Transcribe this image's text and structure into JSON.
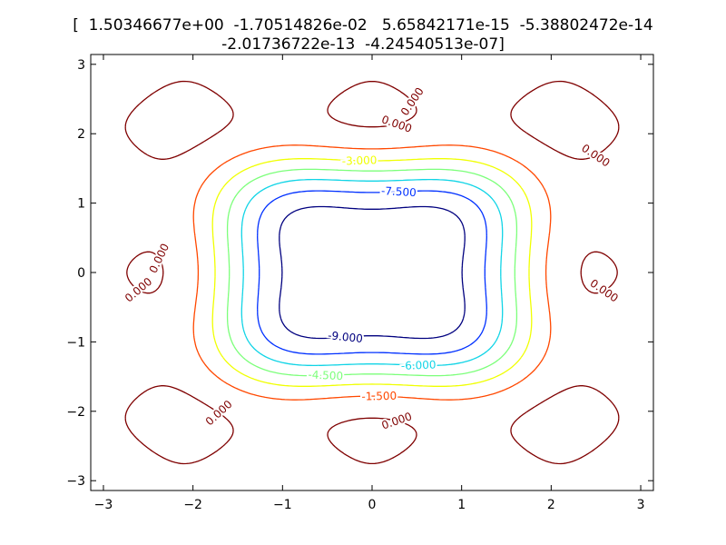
{
  "chart_data": {
    "type": "contour",
    "title_lines": [
      "[  1.50346677e+00  -1.70514826e-02   5.65842171e-15  -5.38802472e-14",
      "-2.01736722e-13  -4.24540513e-07]"
    ],
    "xlim": [
      -3.14159,
      3.14159
    ],
    "ylim": [
      -3.14159,
      3.14159
    ],
    "x_ticks": [
      -3,
      -2,
      -1,
      0,
      1,
      2,
      3
    ],
    "y_ticks": [
      -3,
      -2,
      -1,
      0,
      1,
      2,
      3
    ],
    "x_tick_labels": [
      "−3",
      "−2",
      "−1",
      "0",
      "1",
      "2",
      "3"
    ],
    "y_tick_labels": [
      "−3",
      "−2",
      "−1",
      "0",
      "1",
      "2",
      "3"
    ],
    "xlabel": "",
    "ylabel": "",
    "grid": false,
    "levels": [
      {
        "value": -9.0,
        "label": "-9.000",
        "color": "#00007f"
      },
      {
        "value": -7.5,
        "label": "-7.500",
        "color": "#0030ff"
      },
      {
        "value": -6.0,
        "label": "-6.000",
        "color": "#10d4e6"
      },
      {
        "value": -4.5,
        "label": "-4.500",
        "color": "#7cff7a"
      },
      {
        "value": -3.0,
        "label": "-3.000",
        "color": "#f0ff00"
      },
      {
        "value": -1.5,
        "label": "-1.500",
        "color": "#ff4800"
      },
      {
        "value": 0.0,
        "label": "0.000",
        "color": "#7f0000"
      }
    ]
  }
}
